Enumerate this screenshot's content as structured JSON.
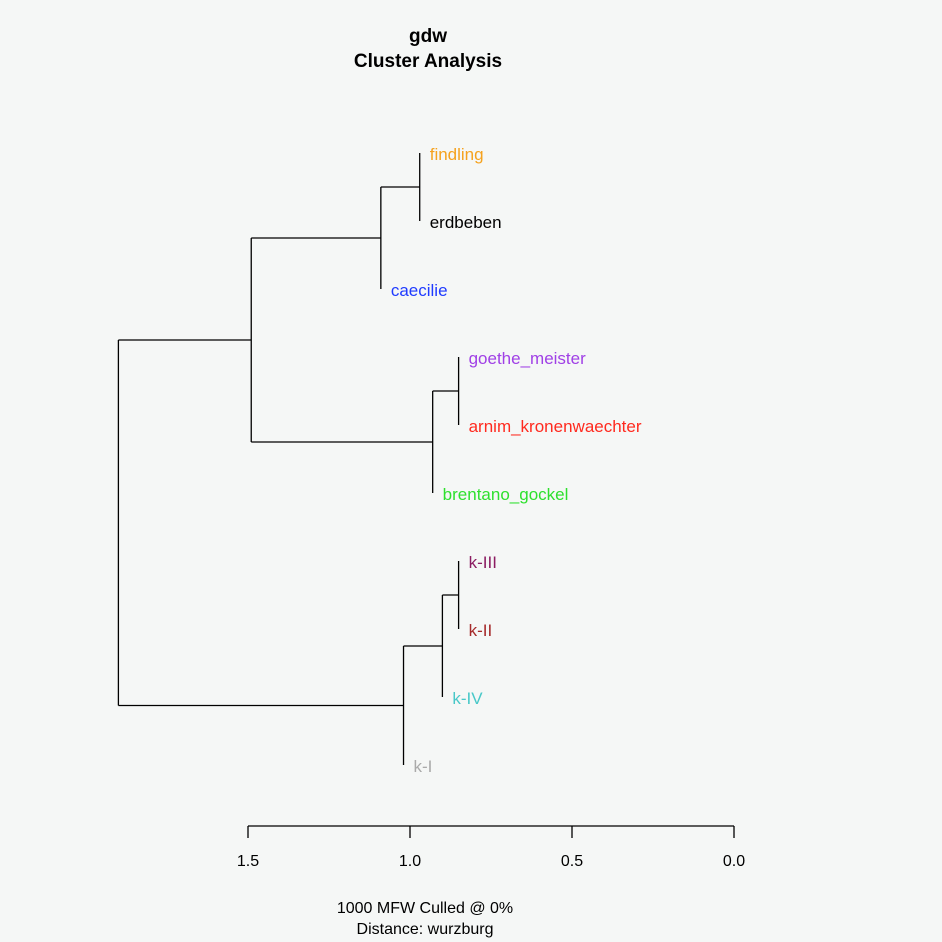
{
  "chart_data": {
    "type": "dendrogram",
    "title": "gdw",
    "subtitle": "Cluster Analysis",
    "footer": [
      "1000 MFW  Culled @ 0%",
      "Distance: wurzburg"
    ],
    "xlim": [
      1.5,
      0.0
    ],
    "ticks": [
      1.5,
      1.0,
      0.5,
      0.0
    ],
    "tick_labels": [
      "1.5",
      "1.0",
      "0.5",
      "0.0"
    ],
    "leaves": [
      {
        "label": "findling",
        "color": "#f5a21e"
      },
      {
        "label": "erdbeben",
        "color": "#000000"
      },
      {
        "label": "caecilie",
        "color": "#1f3bff"
      },
      {
        "label": "goethe_meister",
        "color": "#a040e6"
      },
      {
        "label": "arnim_kronenwaechter",
        "color": "#ff2a1f"
      },
      {
        "label": "brentano_gockel",
        "color": "#2ee02e"
      },
      {
        "label": "k-III",
        "color": "#8b1c62"
      },
      {
        "label": "k-II",
        "color": "#a52a2a"
      },
      {
        "label": "k-IV",
        "color": "#48c8c8"
      },
      {
        "label": "k-I",
        "color": "#aaaaaa"
      }
    ],
    "merges": [
      {
        "children": [
          "findling",
          "erdbeben"
        ],
        "height": 0.97,
        "id": "A"
      },
      {
        "children": [
          "A",
          "caecilie"
        ],
        "height": 1.09,
        "id": "B"
      },
      {
        "children": [
          "goethe_meister",
          "arnim_kronenwaechter"
        ],
        "height": 0.85,
        "id": "C"
      },
      {
        "children": [
          "C",
          "brentano_gockel"
        ],
        "height": 0.93,
        "id": "D"
      },
      {
        "children": [
          "B",
          "D"
        ],
        "height": 1.49,
        "id": "E"
      },
      {
        "children": [
          "k-III",
          "k-II"
        ],
        "height": 0.85,
        "id": "F"
      },
      {
        "children": [
          "F",
          "k-IV"
        ],
        "height": 0.9,
        "id": "G"
      },
      {
        "children": [
          "G",
          "k-I"
        ],
        "height": 1.02,
        "id": "H"
      },
      {
        "children": [
          "E",
          "H"
        ],
        "height": 1.9,
        "id": "root"
      }
    ]
  }
}
